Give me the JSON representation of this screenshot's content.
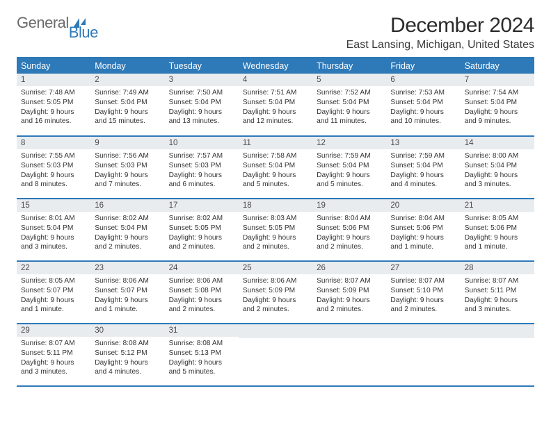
{
  "logo": {
    "text1": "General",
    "text2": "Blue"
  },
  "title": "December 2024",
  "location": "East Lansing, Michigan, United States",
  "colors": {
    "primary": "#2e79b8",
    "header_bg": "#2e79b8",
    "header_text": "#ffffff",
    "daynum_bg": "#e9ecef",
    "text": "#323232",
    "border": "#2e79b8"
  },
  "typography": {
    "title_fontsize": 30,
    "location_fontsize": 16,
    "th_fontsize": 12.5,
    "daynum_fontsize": 11.5,
    "cell_fontsize": 10.2
  },
  "weekdays": [
    "Sunday",
    "Monday",
    "Tuesday",
    "Wednesday",
    "Thursday",
    "Friday",
    "Saturday"
  ],
  "weeks": [
    [
      {
        "n": "1",
        "sr": "7:48 AM",
        "ss": "5:05 PM",
        "dl": "9 hours and 16 minutes."
      },
      {
        "n": "2",
        "sr": "7:49 AM",
        "ss": "5:04 PM",
        "dl": "9 hours and 15 minutes."
      },
      {
        "n": "3",
        "sr": "7:50 AM",
        "ss": "5:04 PM",
        "dl": "9 hours and 13 minutes."
      },
      {
        "n": "4",
        "sr": "7:51 AM",
        "ss": "5:04 PM",
        "dl": "9 hours and 12 minutes."
      },
      {
        "n": "5",
        "sr": "7:52 AM",
        "ss": "5:04 PM",
        "dl": "9 hours and 11 minutes."
      },
      {
        "n": "6",
        "sr": "7:53 AM",
        "ss": "5:04 PM",
        "dl": "9 hours and 10 minutes."
      },
      {
        "n": "7",
        "sr": "7:54 AM",
        "ss": "5:04 PM",
        "dl": "9 hours and 9 minutes."
      }
    ],
    [
      {
        "n": "8",
        "sr": "7:55 AM",
        "ss": "5:03 PM",
        "dl": "9 hours and 8 minutes."
      },
      {
        "n": "9",
        "sr": "7:56 AM",
        "ss": "5:03 PM",
        "dl": "9 hours and 7 minutes."
      },
      {
        "n": "10",
        "sr": "7:57 AM",
        "ss": "5:03 PM",
        "dl": "9 hours and 6 minutes."
      },
      {
        "n": "11",
        "sr": "7:58 AM",
        "ss": "5:04 PM",
        "dl": "9 hours and 5 minutes."
      },
      {
        "n": "12",
        "sr": "7:59 AM",
        "ss": "5:04 PM",
        "dl": "9 hours and 5 minutes."
      },
      {
        "n": "13",
        "sr": "7:59 AM",
        "ss": "5:04 PM",
        "dl": "9 hours and 4 minutes."
      },
      {
        "n": "14",
        "sr": "8:00 AM",
        "ss": "5:04 PM",
        "dl": "9 hours and 3 minutes."
      }
    ],
    [
      {
        "n": "15",
        "sr": "8:01 AM",
        "ss": "5:04 PM",
        "dl": "9 hours and 3 minutes."
      },
      {
        "n": "16",
        "sr": "8:02 AM",
        "ss": "5:04 PM",
        "dl": "9 hours and 2 minutes."
      },
      {
        "n": "17",
        "sr": "8:02 AM",
        "ss": "5:05 PM",
        "dl": "9 hours and 2 minutes."
      },
      {
        "n": "18",
        "sr": "8:03 AM",
        "ss": "5:05 PM",
        "dl": "9 hours and 2 minutes."
      },
      {
        "n": "19",
        "sr": "8:04 AM",
        "ss": "5:06 PM",
        "dl": "9 hours and 2 minutes."
      },
      {
        "n": "20",
        "sr": "8:04 AM",
        "ss": "5:06 PM",
        "dl": "9 hours and 1 minute."
      },
      {
        "n": "21",
        "sr": "8:05 AM",
        "ss": "5:06 PM",
        "dl": "9 hours and 1 minute."
      }
    ],
    [
      {
        "n": "22",
        "sr": "8:05 AM",
        "ss": "5:07 PM",
        "dl": "9 hours and 1 minute."
      },
      {
        "n": "23",
        "sr": "8:06 AM",
        "ss": "5:07 PM",
        "dl": "9 hours and 1 minute."
      },
      {
        "n": "24",
        "sr": "8:06 AM",
        "ss": "5:08 PM",
        "dl": "9 hours and 2 minutes."
      },
      {
        "n": "25",
        "sr": "8:06 AM",
        "ss": "5:09 PM",
        "dl": "9 hours and 2 minutes."
      },
      {
        "n": "26",
        "sr": "8:07 AM",
        "ss": "5:09 PM",
        "dl": "9 hours and 2 minutes."
      },
      {
        "n": "27",
        "sr": "8:07 AM",
        "ss": "5:10 PM",
        "dl": "9 hours and 2 minutes."
      },
      {
        "n": "28",
        "sr": "8:07 AM",
        "ss": "5:11 PM",
        "dl": "9 hours and 3 minutes."
      }
    ],
    [
      {
        "n": "29",
        "sr": "8:07 AM",
        "ss": "5:11 PM",
        "dl": "9 hours and 3 minutes."
      },
      {
        "n": "30",
        "sr": "8:08 AM",
        "ss": "5:12 PM",
        "dl": "9 hours and 4 minutes."
      },
      {
        "n": "31",
        "sr": "8:08 AM",
        "ss": "5:13 PM",
        "dl": "9 hours and 5 minutes."
      },
      null,
      null,
      null,
      null
    ]
  ],
  "labels": {
    "sunrise": "Sunrise:",
    "sunset": "Sunset:",
    "daylight": "Daylight:"
  }
}
